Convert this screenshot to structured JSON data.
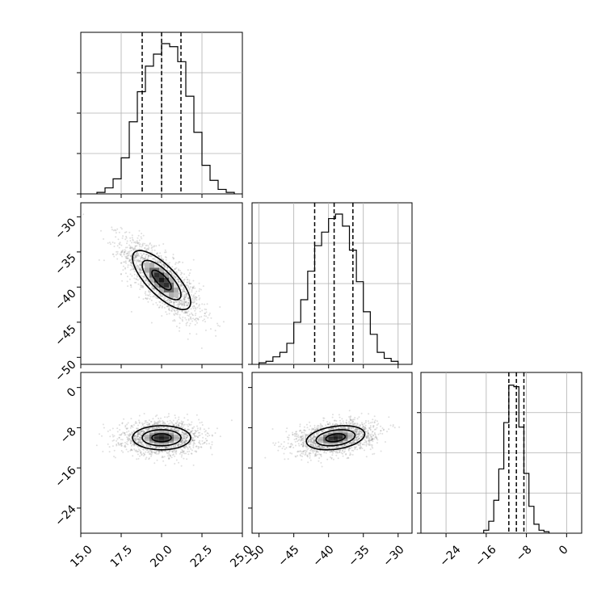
{
  "chart_data": {
    "type": "corner",
    "params": [
      {
        "mean": 20.0,
        "sigma": 1.2,
        "range": [
          15,
          25
        ],
        "ticks": [
          15.0,
          17.5,
          20.0,
          22.5,
          25.0
        ],
        "tick_labels": [
          "15.0",
          "17.5",
          "20.0",
          "22.5",
          "25.0"
        ],
        "quantiles": [
          18.8,
          20.0,
          21.2
        ]
      },
      {
        "mean": -39.0,
        "sigma": 2.8,
        "range": [
          -51,
          -28
        ],
        "ticks": [
          -50,
          -45,
          -40,
          -35,
          -30
        ],
        "tick_labels": [
          "−50",
          "−45",
          "−40",
          "−35",
          "−30"
        ],
        "quantiles": [
          -42.0,
          -39.2,
          -36.5
        ]
      },
      {
        "mean": -10.0,
        "sigma": 1.6,
        "range": [
          -29,
          3
        ],
        "ticks": [
          -24,
          -16,
          -8,
          0
        ],
        "tick_labels": [
          "−24",
          "−16",
          "−8",
          "0"
        ],
        "quantiles": [
          -11.5,
          -10.0,
          -8.5
        ]
      }
    ],
    "correlations": [
      [
        1,
        -0.75,
        0.0
      ],
      [
        -0.75,
        1,
        0.3
      ],
      [
        0.0,
        0.3,
        1
      ]
    ],
    "hist_1": {
      "bin_edges": [
        16.0,
        16.5,
        17.0,
        17.5,
        18.0,
        18.5,
        19.0,
        19.5,
        20.0,
        20.5,
        21.0,
        21.5,
        22.0,
        22.5,
        23.0,
        23.5,
        24.0,
        24.5
      ],
      "counts": [
        0.01,
        0.04,
        0.1,
        0.24,
        0.48,
        0.68,
        0.85,
        0.93,
        1.0,
        0.98,
        0.88,
        0.65,
        0.41,
        0.19,
        0.09,
        0.03,
        0.01
      ]
    },
    "hist_2": {
      "bin_edges": [
        -50.0,
        -49.0,
        -48.0,
        -47.0,
        -46.0,
        -45.0,
        -44.0,
        -43.0,
        -42.0,
        -41.0,
        -40.0,
        -39.0,
        -38.0,
        -37.0,
        -36.0,
        -35.0,
        -34.0,
        -33.0,
        -32.0,
        -31.0,
        -30.0
      ],
      "counts": [
        0.01,
        0.02,
        0.05,
        0.08,
        0.14,
        0.28,
        0.43,
        0.62,
        0.79,
        0.88,
        0.97,
        1.0,
        0.92,
        0.76,
        0.55,
        0.35,
        0.2,
        0.08,
        0.04,
        0.02
      ]
    },
    "hist_3": {
      "bin_edges": [
        -16.5,
        -15.5,
        -14.5,
        -13.5,
        -12.5,
        -11.5,
        -10.5,
        -9.5,
        -8.5,
        -7.5,
        -6.5,
        -5.5,
        -4.5,
        -3.5
      ],
      "counts": [
        0.02,
        0.08,
        0.22,
        0.43,
        0.74,
        0.99,
        0.98,
        0.71,
        0.4,
        0.18,
        0.06,
        0.02,
        0.01
      ]
    },
    "scatter_points_per_panel": 1800
  }
}
